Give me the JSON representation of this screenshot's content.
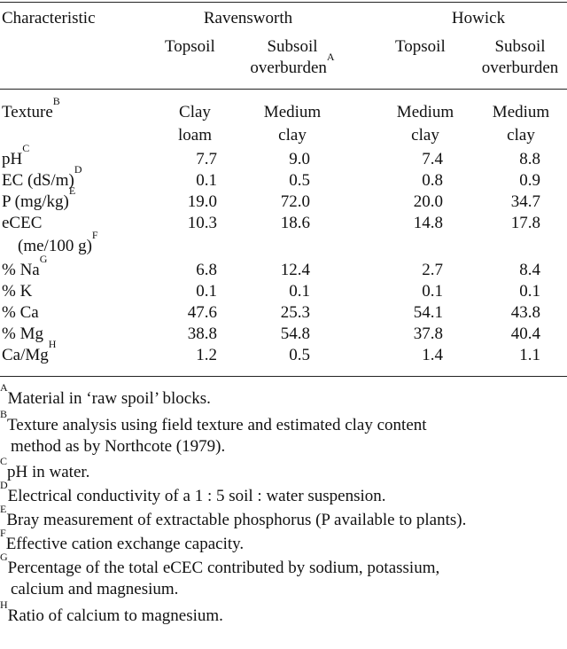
{
  "table": {
    "header": {
      "characteristic": "Characteristic",
      "group1": "Ravensworth",
      "group2": "Howick",
      "topsoil": "Topsoil",
      "subsoil_line1": "Subsoil",
      "subsoil_line2": "overburden",
      "subsoil_sup": "A"
    },
    "rows": [
      {
        "label": "Texture",
        "sup": "B",
        "label2": "",
        "v1": "Clay",
        "v1b": "loam",
        "v2": "Medium",
        "v2b": "clay",
        "v3": "Medium",
        "v3b": "clay",
        "v4": "Medium",
        "v4b": "clay"
      },
      {
        "label": "pH",
        "sup": "C",
        "label2": "",
        "v1": "7.7",
        "v2": "9.0",
        "v3": "7.4",
        "v4": "8.8"
      },
      {
        "label": "EC (dS/m)",
        "sup": "D",
        "label2": "",
        "v1": "0.1",
        "v2": "0.5",
        "v3": "0.8",
        "v4": "0.9"
      },
      {
        "label": "P (mg/kg)",
        "sup": "E",
        "label2": "",
        "v1": "19.0",
        "v2": "72.0",
        "v3": "20.0",
        "v4": "34.7"
      },
      {
        "label": "eCEC",
        "sup": "",
        "label2": "(me/100 g)",
        "sup2": "F",
        "v1": "10.3",
        "v2": "18.6",
        "v3": "14.8",
        "v4": "17.8"
      },
      {
        "label": "% Na",
        "sup": "G",
        "label2": "",
        "v1": "6.8",
        "v2": "12.4",
        "v3": "2.7",
        "v4": "8.4"
      },
      {
        "label": "% K",
        "sup": "",
        "label2": "",
        "v1": "0.1",
        "v2": "0.1",
        "v3": "0.1",
        "v4": "0.1"
      },
      {
        "label": "% Ca",
        "sup": "",
        "label2": "",
        "v1": "47.6",
        "v2": "25.3",
        "v3": "54.1",
        "v4": "43.8"
      },
      {
        "label": "% Mg",
        "sup": "",
        "label2": "",
        "v1": "38.8",
        "v2": "54.8",
        "v3": "37.8",
        "v4": "40.4"
      },
      {
        "label": "Ca/Mg",
        "sup": "H",
        "label2": "",
        "v1": "1.2",
        "v2": "0.5",
        "v3": "1.4",
        "v4": "1.1"
      }
    ]
  },
  "footnotes": [
    {
      "mark": "A",
      "text": "Material in ‘raw spoil’ blocks.",
      "cont": ""
    },
    {
      "mark": "B",
      "text": "Texture analysis using field texture and estimated clay content",
      "cont": "method as by Northcote (1979)."
    },
    {
      "mark": "C",
      "text": "pH in water.",
      "cont": ""
    },
    {
      "mark": "D",
      "text": "Electrical conductivity of a 1 : 5 soil : water suspension.",
      "cont": ""
    },
    {
      "mark": "E",
      "text": "Bray measurement of extractable phosphorus (P available to plants).",
      "cont": ""
    },
    {
      "mark": "F",
      "text": "Effective cation exchange capacity.",
      "cont": ""
    },
    {
      "mark": "G",
      "text": "Percentage of the total eCEC contributed by sodium, potassium,",
      "cont": "calcium and magnesium."
    },
    {
      "mark": "H",
      "text": "Ratio of calcium to magnesium.",
      "cont": ""
    }
  ]
}
